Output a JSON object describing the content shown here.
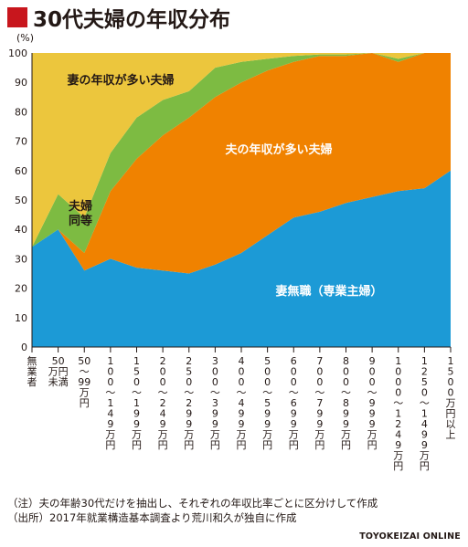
{
  "title": "30代夫婦の年収分布",
  "notes": {
    "note1": "（注）夫の年齢30代だけを抽出し、それぞれの年収比率ごとに区分けして作成",
    "note2": "（出所）2017年就業構造基本調査より荒川和久が独自に作成",
    "brand": "TOYOKEIZAI ONLINE"
  },
  "chart_data": {
    "type": "area",
    "stacked": true,
    "ylabel": "(%)",
    "ylim": [
      0,
      100
    ],
    "yticks": [
      0,
      10,
      20,
      30,
      40,
      50,
      60,
      70,
      80,
      90,
      100
    ],
    "grid": false,
    "x": [
      "無業者",
      "50万円未満",
      "50〜99万円",
      "100〜149万円",
      "150〜199万円",
      "200〜249万円",
      "250〜299万円",
      "300〜399万円",
      "400〜499万円",
      "500〜599万円",
      "600〜699万円",
      "700〜799万円",
      "800〜899万円",
      "900〜999万円",
      "1000〜1249万円",
      "1250〜1499万円",
      "1500万円以上"
    ],
    "series": [
      {
        "name": "妻無職（専業主婦）",
        "color": "#1c9ad6",
        "values": [
          34,
          40,
          26,
          30,
          27,
          26,
          25,
          28,
          32,
          38,
          44,
          46,
          49,
          51,
          53,
          54,
          60
        ]
      },
      {
        "name": "夫の年収が多い夫婦",
        "color": "#f08200",
        "values": [
          0,
          0,
          6,
          23,
          37,
          46,
          53,
          57,
          58,
          56,
          53,
          53,
          50,
          49,
          44,
          46,
          40
        ]
      },
      {
        "name": "夫婦同等",
        "color": "#7dbb42",
        "values": [
          0,
          12,
          12,
          13,
          14,
          12,
          9,
          10,
          7,
          4,
          2,
          0.5,
          0.5,
          0,
          1,
          0,
          0
        ]
      },
      {
        "name": "妻の年収が多い夫婦",
        "color": "#ecc63d",
        "values": [
          66,
          48,
          56,
          34,
          22,
          16,
          13,
          5,
          3,
          2,
          1,
          0.5,
          0.5,
          0,
          2,
          0,
          0
        ]
      }
    ]
  }
}
